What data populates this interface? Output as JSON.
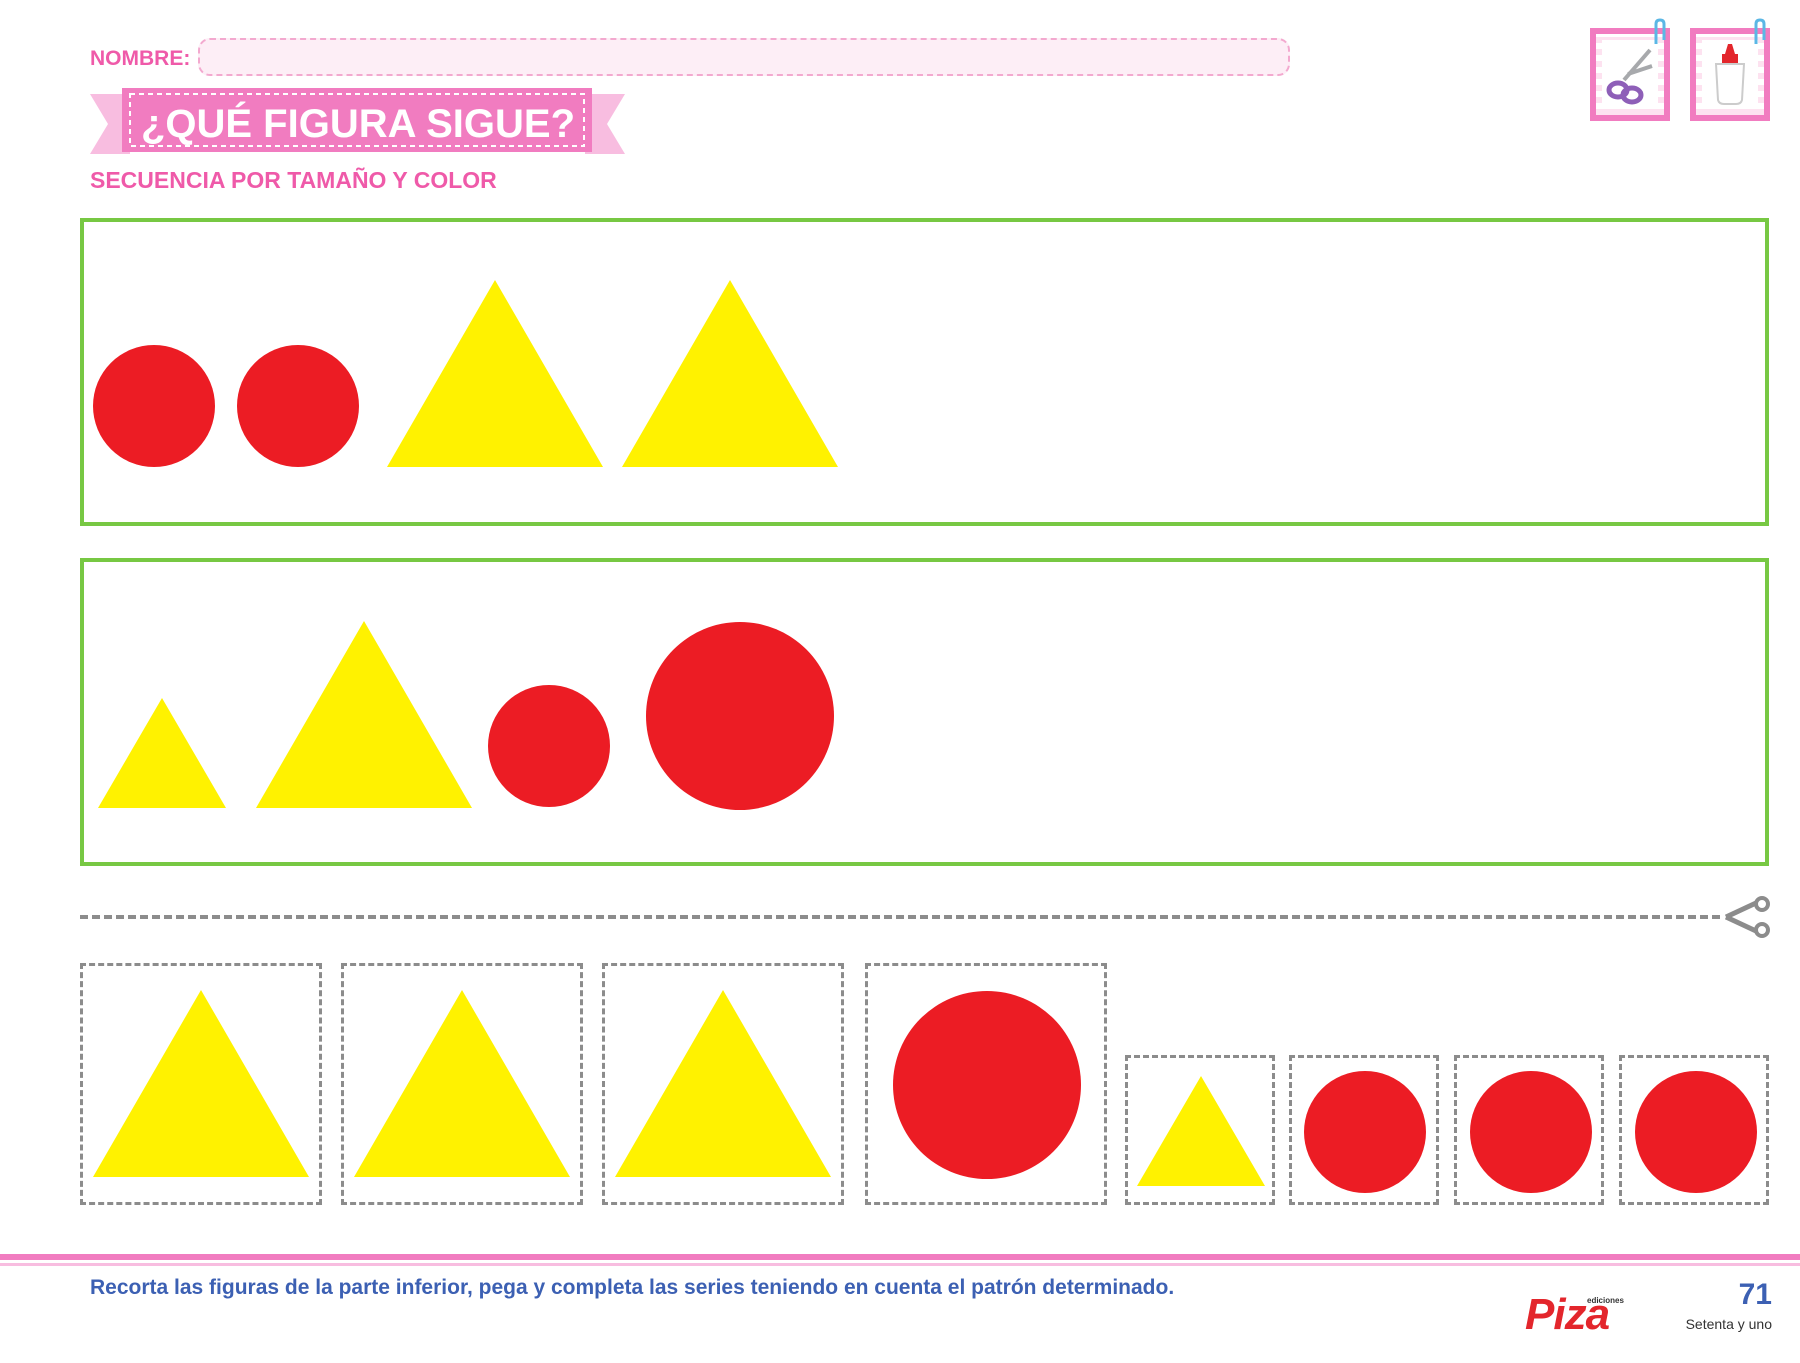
{
  "header": {
    "name_label": "NOMBRE:",
    "title": "¿QUÉ FIGURA SIGUE?",
    "subtitle": "SECUENCIA POR TAMAÑO Y COLOR",
    "tools": [
      "scissors-icon",
      "glue-bottle-icon"
    ]
  },
  "colors": {
    "red": "#ec1c24",
    "yellow": "#fff200",
    "pink": "#ef5aa9",
    "green_frame": "#77c843",
    "blue_text": "#3c60b3"
  },
  "sequences": [
    {
      "shapes": [
        "red-circle",
        "red-circle",
        "yellow-triangle",
        "yellow-triangle"
      ]
    },
    {
      "shapes": [
        "small-yellow-triangle",
        "large-yellow-triangle",
        "small-red-circle",
        "large-red-circle"
      ]
    }
  ],
  "cutouts": {
    "shapes": [
      "large-yellow-triangle",
      "large-yellow-triangle",
      "large-yellow-triangle",
      "large-red-circle",
      "small-yellow-triangle",
      "small-red-circle",
      "small-red-circle",
      "small-red-circle"
    ]
  },
  "footer": {
    "instructions": "Recorta las figuras de la parte inferior, pega y completa las series teniendo en cuenta el patrón determinado.",
    "brand_small": "ediciones",
    "brand": "Piza",
    "page_number": "71",
    "page_words": "Setenta y uno"
  }
}
